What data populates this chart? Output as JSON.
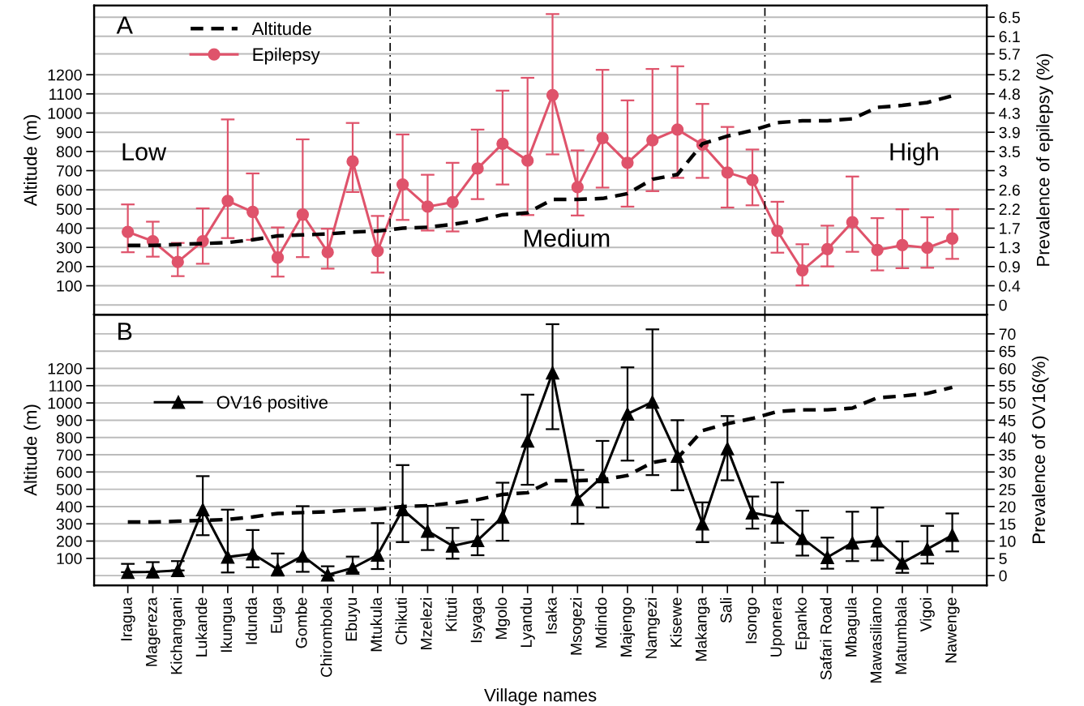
{
  "chart_data": [
    {
      "type": "line",
      "categories": [
        null,
        null,
        null,
        null,
        null,
        null,
        null,
        null,
        null,
        null,
        null,
        null,
        null,
        null,
        null,
        null,
        null,
        null,
        null,
        null,
        null,
        null,
        null,
        null,
        null,
        null,
        null,
        null,
        null,
        null,
        null,
        null,
        null,
        null
      ],
      "ylabel": "Altitude (m)",
      "y2label": "Prevalence of epilepsy (%)",
      "ylim": [
        -50,
        1560
      ],
      "yticks": [
        100,
        200,
        300,
        400,
        500,
        600,
        700,
        800,
        900,
        1000,
        1100,
        1200
      ],
      "y2lim": [
        -0.217,
        6.76
      ],
      "y2ticks": [
        0,
        {
          "value": 0.4333,
          "label": "0.4"
        },
        {
          "value": 0.8667,
          "label": "0.9"
        },
        1.3,
        {
          "value": 1.7333,
          "label": "1.7"
        },
        {
          "value": 2.1667,
          "label": "2.2"
        },
        2.6,
        {
          "value": 3.0333,
          "label": "3"
        },
        {
          "value": 3.4667,
          "label": "3.5"
        },
        3.9,
        {
          "value": 4.3333,
          "label": "4.3"
        },
        {
          "value": 4.7667,
          "label": "4.8"
        },
        5.2,
        {
          "value": 5.67,
          "label": "5.7"
        },
        {
          "value": 6.0667,
          "label": "6.1"
        },
        6.5
      ],
      "grid": "y2",
      "legend": "top left",
      "tick_labels": "y",
      "annotations": [
        "A",
        "Low",
        "Medium",
        "High"
      ],
      "series": [
        {
          "name": "Altitude",
          "color": "#000000",
          "line_style": "dashed",
          "marker": "none",
          "values": [
            310,
            310,
            315,
            320,
            325,
            340,
            360,
            365,
            370,
            380,
            385,
            400,
            405,
            420,
            440,
            470,
            480,
            550,
            550,
            555,
            580,
            655,
            680,
            840,
            880,
            910,
            950,
            960,
            960,
            970,
            1030,
            1040,
            1055,
            1090
          ]
        },
        {
          "name": "Epilepsy",
          "color": "#df536b",
          "axis": "y2",
          "line_style": "solid",
          "marker": "circle",
          "values": [
            1.65,
            1.44,
            0.97,
            1.44,
            2.35,
            2.1,
            1.07,
            2.04,
            1.19,
            3.24,
            1.22,
            2.72,
            2.22,
            2.32,
            3.08,
            3.64,
            3.26,
            4.74,
            2.66,
            3.77,
            3.21,
            3.72,
            3.96,
            3.62,
            2.99,
            2.82,
            1.67,
            0.78,
            1.26,
            1.87,
            1.24,
            1.35,
            1.29,
            1.5
          ],
          "errors": [
            [
              1.19,
              2.27
            ],
            [
              1.09,
              1.88
            ],
            [
              0.65,
              1.4
            ],
            [
              0.93,
              2.18
            ],
            [
              1.51,
              4.19
            ],
            [
              1.47,
              2.97
            ],
            [
              0.64,
              1.75
            ],
            [
              1.08,
              3.74
            ],
            [
              0.82,
              1.72
            ],
            [
              2.55,
              4.11
            ],
            [
              0.73,
              2.01
            ],
            [
              1.92,
              3.85
            ],
            [
              1.68,
              2.94
            ],
            [
              1.66,
              3.21
            ],
            [
              2.39,
              3.96
            ],
            [
              2.72,
              4.84
            ],
            [
              2.03,
              5.13
            ],
            [
              3.4,
              6.57
            ],
            [
              2.02,
              3.49
            ],
            [
              2.65,
              5.31
            ],
            [
              2.22,
              4.62
            ],
            [
              2.57,
              5.33
            ],
            [
              2.87,
              5.39
            ],
            [
              2.87,
              4.54
            ],
            [
              2.2,
              4.02
            ],
            [
              2.25,
              3.51
            ],
            [
              1.18,
              2.33
            ],
            [
              0.44,
              1.37
            ],
            [
              0.87,
              1.79
            ],
            [
              1.2,
              2.9
            ],
            [
              0.78,
              1.96
            ],
            [
              0.83,
              2.16
            ],
            [
              0.84,
              1.98
            ],
            [
              1.04,
              2.16
            ]
          ]
        }
      ]
    },
    {
      "type": "line",
      "categories": [
        "Iragua",
        "Magereza",
        "Kichangani",
        "Lukande",
        "Ikungua",
        "Idunda",
        "Euga",
        "Gombe",
        "Chirombola",
        "Ebuyu",
        "Mtukula",
        "Chikuti",
        "Mzelezi",
        "Kituti",
        "Isyaga",
        "Mgolo",
        "Lyandu",
        "Isaka",
        "Msogezi",
        "Mdindo",
        "Majengo",
        "Namgezi",
        "Kisewe",
        "Makanga",
        "Sali",
        "Isongo",
        "Uponera",
        "Epanko",
        "Safari Road",
        "Mbagula",
        "Mawasiliano",
        "Matumbala",
        "Vigoi",
        "Nawenge"
      ],
      "xlabel": "Village names",
      "ylabel": "Altitude (m)",
      "y2label": "Prevalence of OV16(%)",
      "ylim": [
        -56,
        1512
      ],
      "yticks": [
        100,
        200,
        300,
        400,
        500,
        600,
        700,
        800,
        900,
        1000,
        1100,
        1200
      ],
      "y2lim": [
        -2.8,
        75.6
      ],
      "y2ticks": [
        0,
        5,
        10,
        15,
        20,
        25,
        30,
        35,
        40,
        45,
        50,
        55,
        60,
        65,
        70
      ],
      "grid": "y2",
      "legend": "left",
      "annotations": [
        "B"
      ],
      "series": [
        {
          "color": "#000000",
          "line_style": "dashed",
          "marker": "none",
          "values": [
            310,
            310,
            315,
            320,
            325,
            340,
            360,
            365,
            370,
            380,
            385,
            400,
            405,
            420,
            440,
            470,
            480,
            550,
            550,
            555,
            580,
            655,
            680,
            840,
            880,
            910,
            950,
            960,
            960,
            970,
            1030,
            1040,
            1055,
            1090
          ]
        },
        {
          "name": "OV16 positive",
          "color": "#000000",
          "axis": "y2",
          "line_style": "solid",
          "marker": "triangle",
          "values": [
            1.0,
            1.1,
            1.5,
            19.1,
            5.4,
            6.3,
            1.8,
            5.7,
            0.2,
            2.2,
            6.0,
            19.1,
            12.9,
            8.6,
            10.2,
            17.0,
            39.0,
            58.7,
            22.1,
            28.7,
            46.8,
            50.3,
            34.6,
            15.0,
            36.8,
            18.2,
            16.8,
            10.8,
            5.3,
            9.5,
            10.1,
            3.7,
            7.7,
            11.7
          ],
          "errors": [
            [
              1.0,
              3.4
            ],
            [
              1.1,
              3.9
            ],
            [
              1.5,
              4.2
            ],
            [
              11.7,
              28.8
            ],
            [
              0.9,
              19.1
            ],
            [
              2.4,
              13.2
            ],
            [
              0,
              6.4
            ],
            [
              1.1,
              20.1
            ],
            [
              0,
              2.7
            ],
            [
              0.9,
              5.5
            ],
            [
              1.9,
              15.2
            ],
            [
              9.7,
              32.0
            ],
            [
              7.4,
              20.2
            ],
            [
              4.9,
              13.8
            ],
            [
              5.9,
              16.2
            ],
            [
              10.1,
              26.9
            ],
            [
              26.3,
              52.4
            ],
            [
              42.4,
              72.8
            ],
            [
              15.0,
              30.6
            ],
            [
              19.7,
              39.0
            ],
            [
              33.3,
              60.3
            ],
            [
              29.1,
              71.3
            ],
            [
              24.7,
              45.0
            ],
            [
              9.7,
              21.2
            ],
            [
              27.6,
              46.2
            ],
            [
              13.6,
              22.9
            ],
            [
              9.5,
              27.0
            ],
            [
              5.8,
              18.8
            ],
            [
              2.0,
              11.0
            ],
            [
              4.2,
              18.5
            ],
            [
              4.4,
              19.7
            ],
            [
              0.8,
              9.9
            ],
            [
              3.5,
              14.4
            ],
            [
              7.0,
              18.0
            ]
          ]
        }
      ]
    }
  ]
}
